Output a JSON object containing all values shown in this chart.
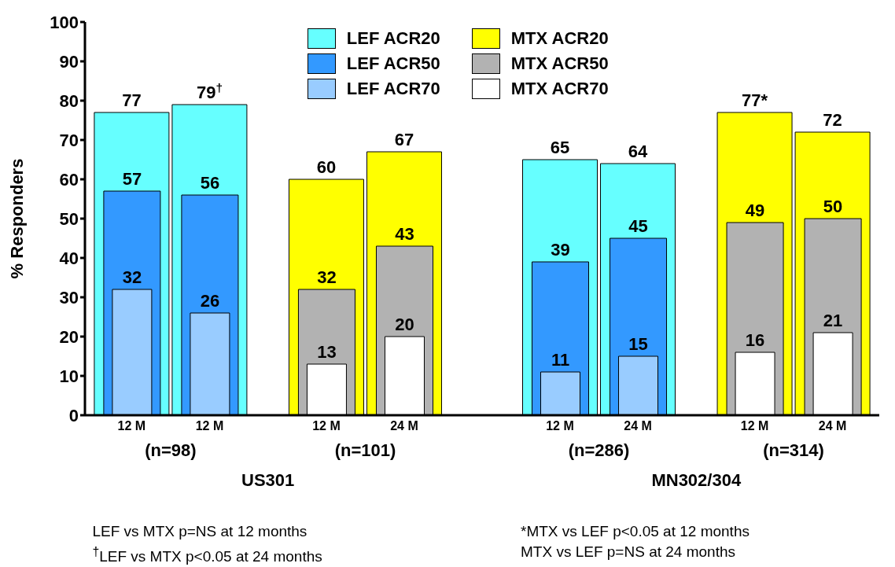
{
  "chart_data": {
    "type": "bar",
    "ylabel": "% Responders",
    "categories": [
      "12 M",
      "12 M",
      "12 M",
      "24 M",
      "12 M",
      "24 M",
      "12 M",
      "24 M"
    ],
    "series": [
      {
        "name": "LEF ACR20",
        "color": "#66ffff",
        "values": [
          77,
          79,
          null,
          null,
          65,
          64,
          null,
          null
        ],
        "value_labels": [
          "77",
          "79$^{†}$",
          null,
          null,
          "65",
          "64",
          null,
          null
        ]
      },
      {
        "name": "LEF ACR50",
        "color": "#3399ff",
        "values": [
          57,
          56,
          null,
          null,
          39,
          45,
          null,
          null
        ],
        "value_labels": [
          "57",
          "56",
          null,
          null,
          "39",
          "45",
          null,
          null
        ]
      },
      {
        "name": "LEF ACR70",
        "color": "#99ccff",
        "values": [
          32,
          26,
          null,
          null,
          11,
          15,
          null,
          null
        ],
        "value_labels": [
          "32",
          "26",
          null,
          null,
          "11",
          "15",
          null,
          null
        ]
      },
      {
        "name": "MTX ACR20",
        "color": "#ffff00",
        "values": [
          null,
          null,
          60,
          67,
          null,
          null,
          77,
          72
        ],
        "value_labels": [
          null,
          null,
          "60",
          "67",
          null,
          null,
          "77*",
          "72"
        ]
      },
      {
        "name": "MTX ACR50",
        "color": "#b2b2b2",
        "values": [
          null,
          null,
          32,
          43,
          null,
          null,
          49,
          50
        ],
        "value_labels": [
          null,
          null,
          "32",
          "43",
          null,
          null,
          "49",
          "50"
        ]
      },
      {
        "name": "MTX ACR70",
        "color": "#ffffff",
        "values": [
          null,
          null,
          13,
          20,
          null,
          null,
          16,
          21
        ],
        "value_labels": [
          null,
          null,
          "13",
          "20",
          null,
          null,
          "16",
          "21"
        ]
      }
    ],
    "ylim": [
      0,
      100
    ],
    "yticks": [
      0,
      10,
      20,
      30,
      40,
      50,
      60,
      70,
      80,
      90,
      100
    ],
    "grid": false,
    "legend": "top",
    "annotations": [
      "(n=98)",
      "(n=101)",
      "(n=286)",
      "(n=314)",
      "US301",
      "MN302/304",
      "LEF vs MTX p=NS at 12 months",
      "$^{†}$LEF vs MTX p<0.05 at 24 months",
      "*MTX vs LEF p<0.05 at 12 months",
      "MTX vs LEF p=NS at 24 months"
    ]
  }
}
